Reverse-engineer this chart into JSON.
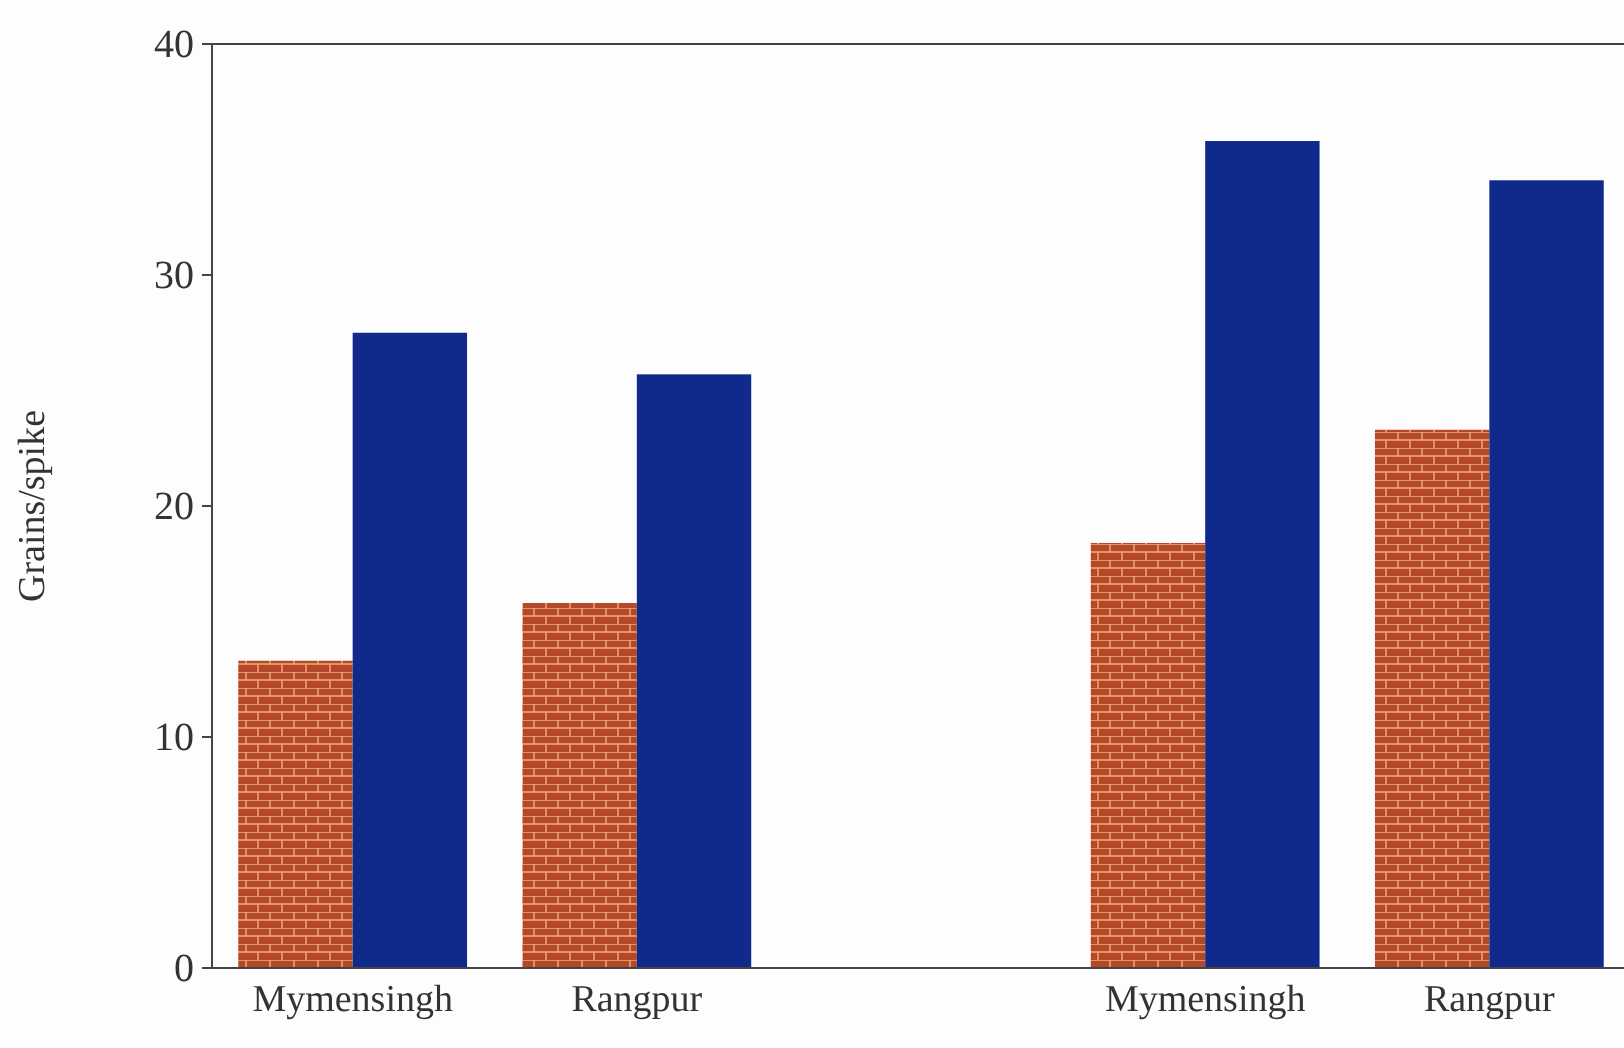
{
  "chart_data": {
    "type": "bar",
    "ylabel": "Grains/spike",
    "categories": [
      "Mymensingh",
      "Rangpur",
      null,
      "Mymensingh",
      "Rangpur"
    ],
    "series": [
      {
        "color": "#b5482a",
        "values": [
          13.3,
          15.8,
          null,
          18.4,
          23.3
        ]
      },
      {
        "color": "#0f2a8a",
        "values": [
          27.5,
          25.7,
          null,
          35.8,
          34.1
        ]
      }
    ],
    "ylim": [
      0,
      40
    ],
    "yticks": [
      0,
      10,
      20,
      30,
      40
    ],
    "grid": false
  }
}
